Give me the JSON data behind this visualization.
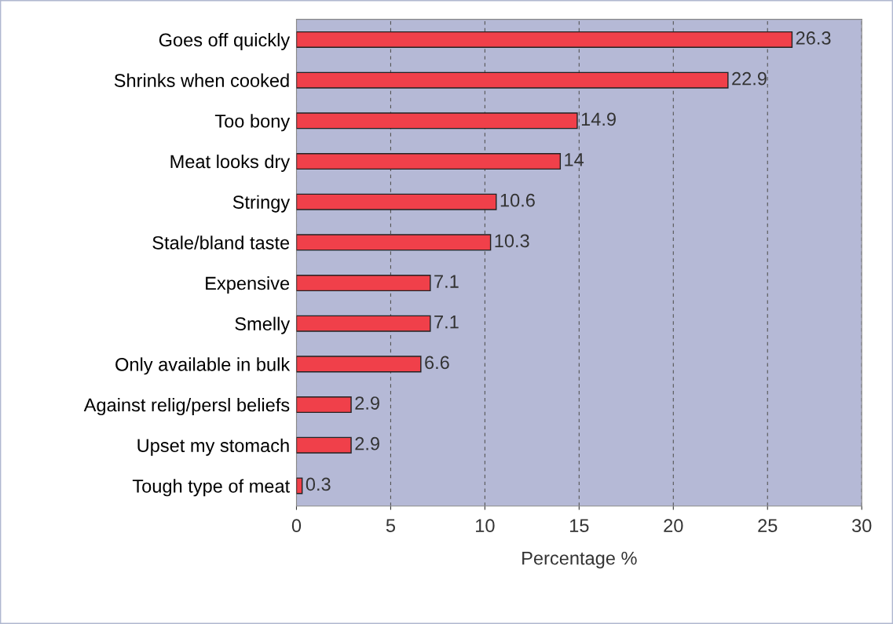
{
  "chart_data": {
    "type": "bar",
    "orientation": "horizontal",
    "xlabel": "Percentage %",
    "categories": [
      "Goes off quickly",
      "Shrinks when cooked",
      "Too bony",
      "Meat looks dry",
      "Stringy",
      "Stale/bland taste",
      "Expensive",
      "Smelly",
      "Only available in bulk",
      "Against relig/persl beliefs",
      "Upset my stomach",
      "Tough type of meat"
    ],
    "values": [
      26.3,
      22.9,
      14.9,
      14,
      10.6,
      10.3,
      7.1,
      7.1,
      6.6,
      2.9,
      2.9,
      0.3
    ],
    "color": "#f0404a",
    "xlim": [
      0,
      30
    ],
    "xticks": [
      0,
      5,
      10,
      15,
      20,
      25,
      30
    ],
    "grid": "x",
    "data_labels": true
  }
}
